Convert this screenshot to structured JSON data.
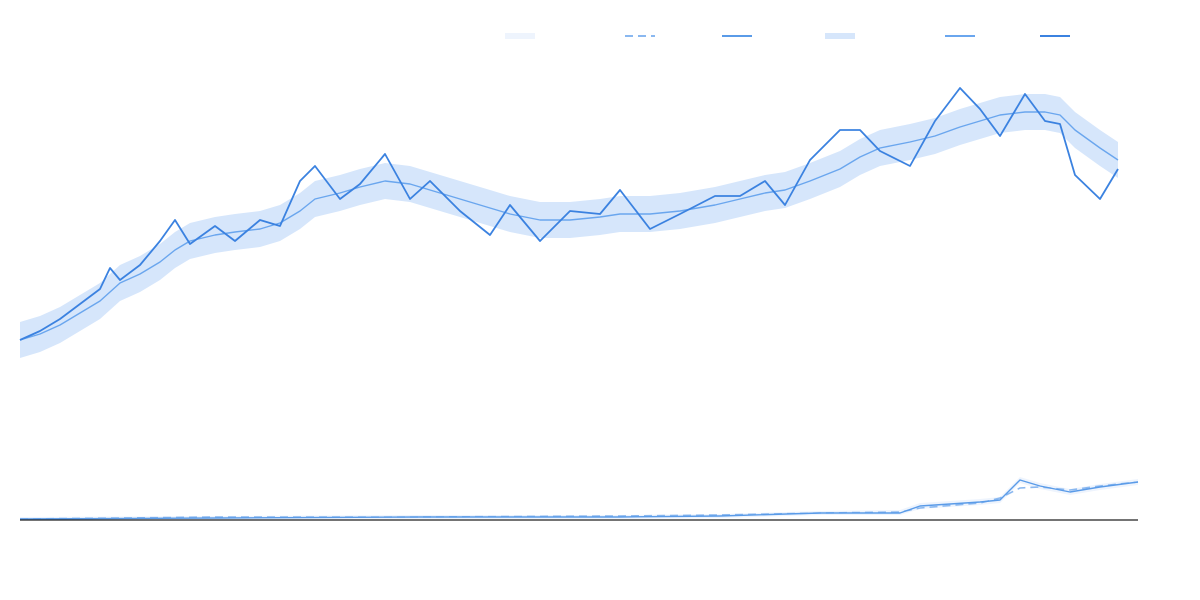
{
  "chart_data": [
    {
      "type": "line",
      "x": [
        0,
        20,
        40,
        60,
        80,
        90,
        100,
        120,
        140,
        155,
        170,
        195,
        215,
        240,
        260,
        280,
        295,
        320,
        340,
        365,
        390,
        410,
        440,
        470,
        490,
        520,
        550,
        580,
        600,
        630,
        660,
        695,
        720,
        745,
        765,
        790,
        820,
        840,
        860,
        890,
        915,
        940,
        960,
        980,
        1005,
        1025,
        1040,
        1055,
        1080,
        1098
      ],
      "xlim": [
        0,
        1120
      ],
      "ylim": [
        0,
        100
      ],
      "series": [
        {
          "style": "band",
          "color": "#d6e6fb",
          "values": [
            16,
            18,
            21,
            25,
            29,
            32,
            35,
            38,
            42,
            46,
            49,
            51,
            52,
            53,
            55,
            59,
            63,
            65,
            67,
            69,
            68,
            66,
            63,
            60,
            58,
            56,
            56,
            57,
            58,
            58,
            59,
            61,
            63,
            65,
            66,
            69,
            73,
            77,
            80,
            82,
            84,
            87,
            89,
            91,
            92,
            92,
            91,
            86,
            80,
            76
          ],
          "lower": [
            4,
            6,
            9,
            13,
            17,
            20,
            23,
            26,
            30,
            34,
            37,
            39,
            40,
            41,
            43,
            47,
            51,
            53,
            55,
            57,
            56,
            54,
            51,
            48,
            46,
            44,
            44,
            45,
            46,
            46,
            47,
            49,
            51,
            53,
            54,
            57,
            61,
            65,
            68,
            70,
            72,
            75,
            77,
            79,
            80,
            80,
            79,
            74,
            68,
            64
          ]
        },
        {
          "style": "line",
          "color": "#6aa6ee",
          "values": [
            10,
            12,
            15,
            19,
            23,
            26,
            29,
            32,
            36,
            40,
            43,
            45,
            46,
            47,
            49,
            53,
            57,
            59,
            61,
            63,
            62,
            60,
            57,
            54,
            52,
            50,
            50,
            51,
            52,
            52,
            53,
            55,
            57,
            59,
            60,
            63,
            67,
            71,
            74,
            76,
            78,
            81,
            83,
            85,
            86,
            86,
            85,
            80,
            74,
            70
          ]
        },
        {
          "style": "line",
          "color": "#3b82e0",
          "values": [
            10,
            13,
            17,
            22,
            27,
            34,
            30,
            35,
            43,
            50,
            42,
            48,
            43,
            50,
            48,
            63,
            68,
            57,
            62,
            72,
            57,
            63,
            53,
            45,
            55,
            43,
            53,
            52,
            60,
            47,
            52,
            58,
            58,
            63,
            55,
            70,
            80,
            80,
            73,
            68,
            83,
            94,
            87,
            78,
            92,
            83,
            82,
            65,
            57,
            67
          ]
        }
      ]
    },
    {
      "type": "line",
      "x": [
        0,
        200,
        400,
        600,
        700,
        800,
        880,
        900,
        960,
        980,
        1000,
        1020,
        1050,
        1080,
        1118
      ],
      "xlim": [
        0,
        1120
      ],
      "ylim": [
        0,
        100
      ],
      "series": [
        {
          "style": "band",
          "color": "#eef4fd",
          "values": [
            3,
            4,
            5,
            5,
            6,
            9,
            10,
            17,
            21,
            23,
            43,
            37,
            31,
            36,
            41
          ],
          "lower": [
            0,
            0,
            1,
            1,
            2,
            5,
            5,
            11,
            15,
            17,
            37,
            31,
            25,
            30,
            35
          ]
        },
        {
          "style": "dashed",
          "color": "#8ab8f0",
          "values": [
            1,
            3,
            3,
            4,
            5,
            7,
            8,
            12,
            17,
            22,
            32,
            33,
            30,
            34,
            38
          ]
        },
        {
          "style": "line",
          "color": "#5a9be8",
          "values": [
            1,
            2,
            3,
            3,
            4,
            7,
            7,
            14,
            18,
            20,
            40,
            34,
            28,
            33,
            38
          ]
        }
      ]
    }
  ]
}
